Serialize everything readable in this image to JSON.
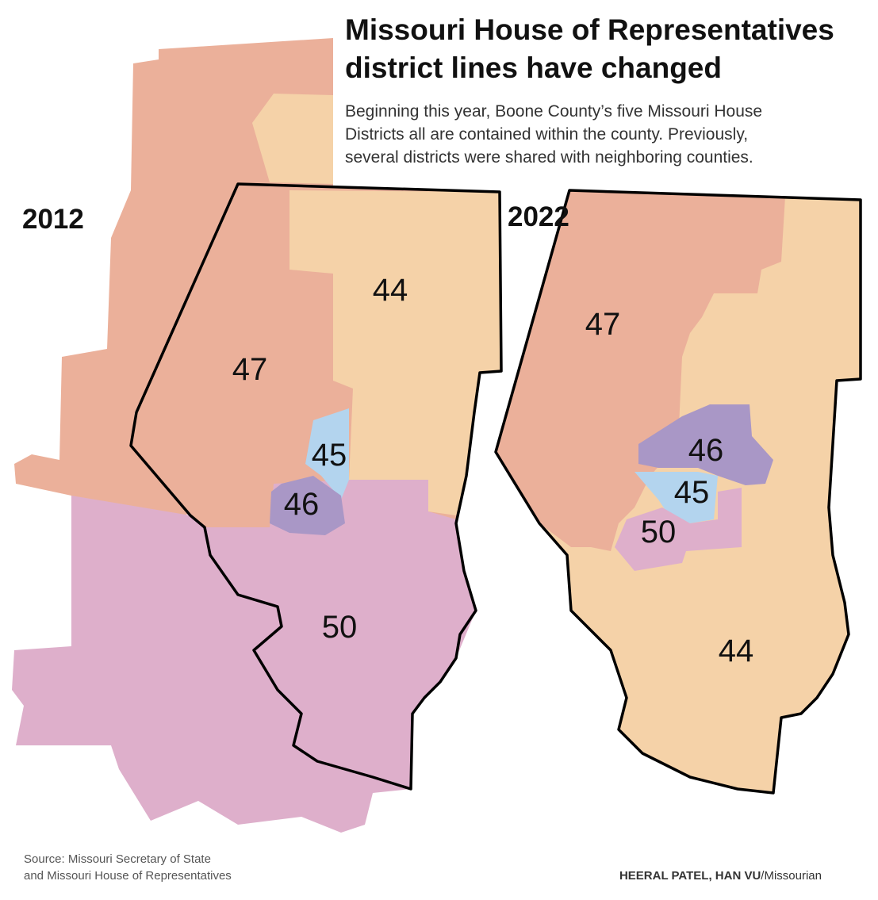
{
  "header": {
    "title": [
      "Missouri House of Representatives",
      "district lines have changed"
    ],
    "subtitle": [
      "Beginning this year, Boone County’s five Missouri House",
      "Districts all are contained within the county. Previously,",
      "several districts were shared with neighboring counties."
    ]
  },
  "maps": [
    {
      "year": "2012",
      "districts": [
        "44",
        "47",
        "45",
        "46",
        "50"
      ]
    },
    {
      "year": "2022",
      "districts": [
        "47",
        "46",
        "45",
        "50",
        "44"
      ]
    }
  ],
  "footer": {
    "source": [
      "Source: Missouri Secretary of State",
      "and Missouri House of Representatives"
    ],
    "credit": {
      "names": "HEERAL PATEL, HAN VU",
      "outlet": "/Missourian"
    }
  }
}
